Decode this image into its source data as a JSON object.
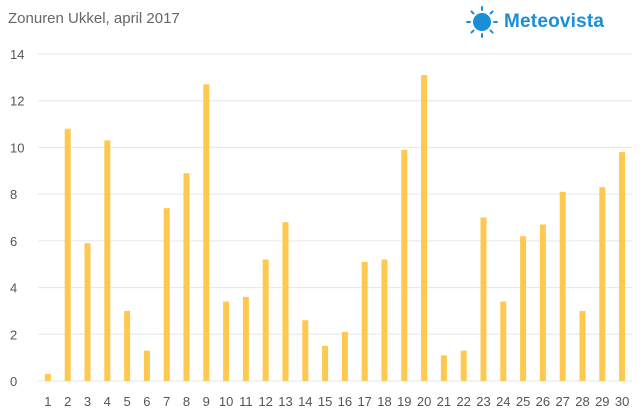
{
  "header": {
    "title": "Zonuren Ukkel, april 2017",
    "brand": "Meteovista",
    "brand_icon": "sun-icon"
  },
  "colors": {
    "bar": "#FFC94F",
    "grid": "#e6e6e6",
    "brand": "#1a8fd6"
  },
  "chart_data": {
    "type": "bar",
    "title": "Zonuren Ukkel, april 2017",
    "categories": [
      "1",
      "2",
      "3",
      "4",
      "5",
      "6",
      "7",
      "8",
      "9",
      "10",
      "11",
      "12",
      "13",
      "14",
      "15",
      "16",
      "17",
      "18",
      "19",
      "20",
      "21",
      "22",
      "23",
      "24",
      "25",
      "26",
      "27",
      "28",
      "29",
      "30"
    ],
    "values": [
      0.3,
      10.8,
      5.9,
      10.3,
      3.0,
      1.3,
      7.4,
      8.9,
      12.7,
      3.4,
      3.6,
      5.2,
      6.8,
      2.6,
      1.5,
      2.1,
      5.1,
      5.2,
      9.9,
      13.1,
      1.1,
      1.3,
      7.0,
      3.4,
      6.2,
      6.7,
      8.1,
      3.0,
      8.3,
      9.8
    ],
    "xlabel": "",
    "ylabel": "",
    "ylim": [
      0,
      14
    ],
    "yticks": [
      "0",
      "2",
      "4",
      "6",
      "8",
      "10",
      "12",
      "14"
    ],
    "grid": true,
    "legend": "none"
  }
}
